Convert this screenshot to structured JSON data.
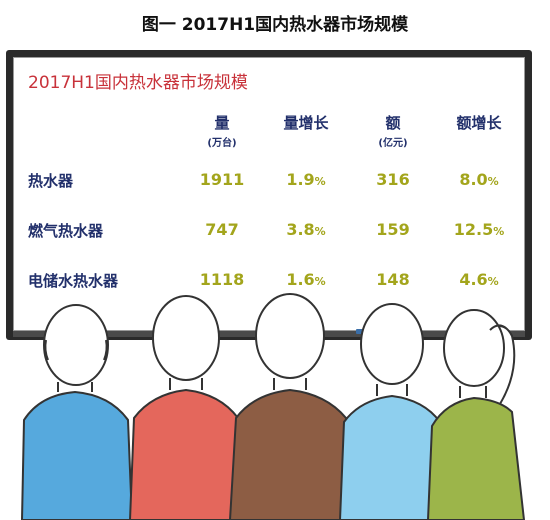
{
  "page_title": "图一 2017H1国内热水器市场规模",
  "board_title": "2017H1国内热水器市场规模",
  "columns": [
    {
      "label": "量",
      "unit": "万台"
    },
    {
      "label": "量增长",
      "unit": ""
    },
    {
      "label": "额",
      "unit": "亿元"
    },
    {
      "label": "额增长",
      "unit": ""
    }
  ],
  "rows": [
    {
      "name": "热水器",
      "volume": "1911",
      "volume_growth": "1.9",
      "amount": "316",
      "amount_growth": "8.0"
    },
    {
      "name": "燃气热水器",
      "volume": "747",
      "volume_growth": "3.8",
      "amount": "159",
      "amount_growth": "12.5"
    },
    {
      "name": "电储水热水器",
      "volume": "1118",
      "volume_growth": "1.6",
      "amount": "148",
      "amount_growth": "4.6"
    }
  ],
  "percent_sign": "%",
  "colors": {
    "title_red": "#c8323a",
    "label_navy": "#22306b",
    "value_olive": "#a3a51c",
    "shirt_blue": "#56a9dd",
    "shirt_red": "#e4675c",
    "shirt_brown": "#8d5d44",
    "shirt_lightblue": "#8ecfee",
    "shirt_olive": "#9cb54a"
  }
}
